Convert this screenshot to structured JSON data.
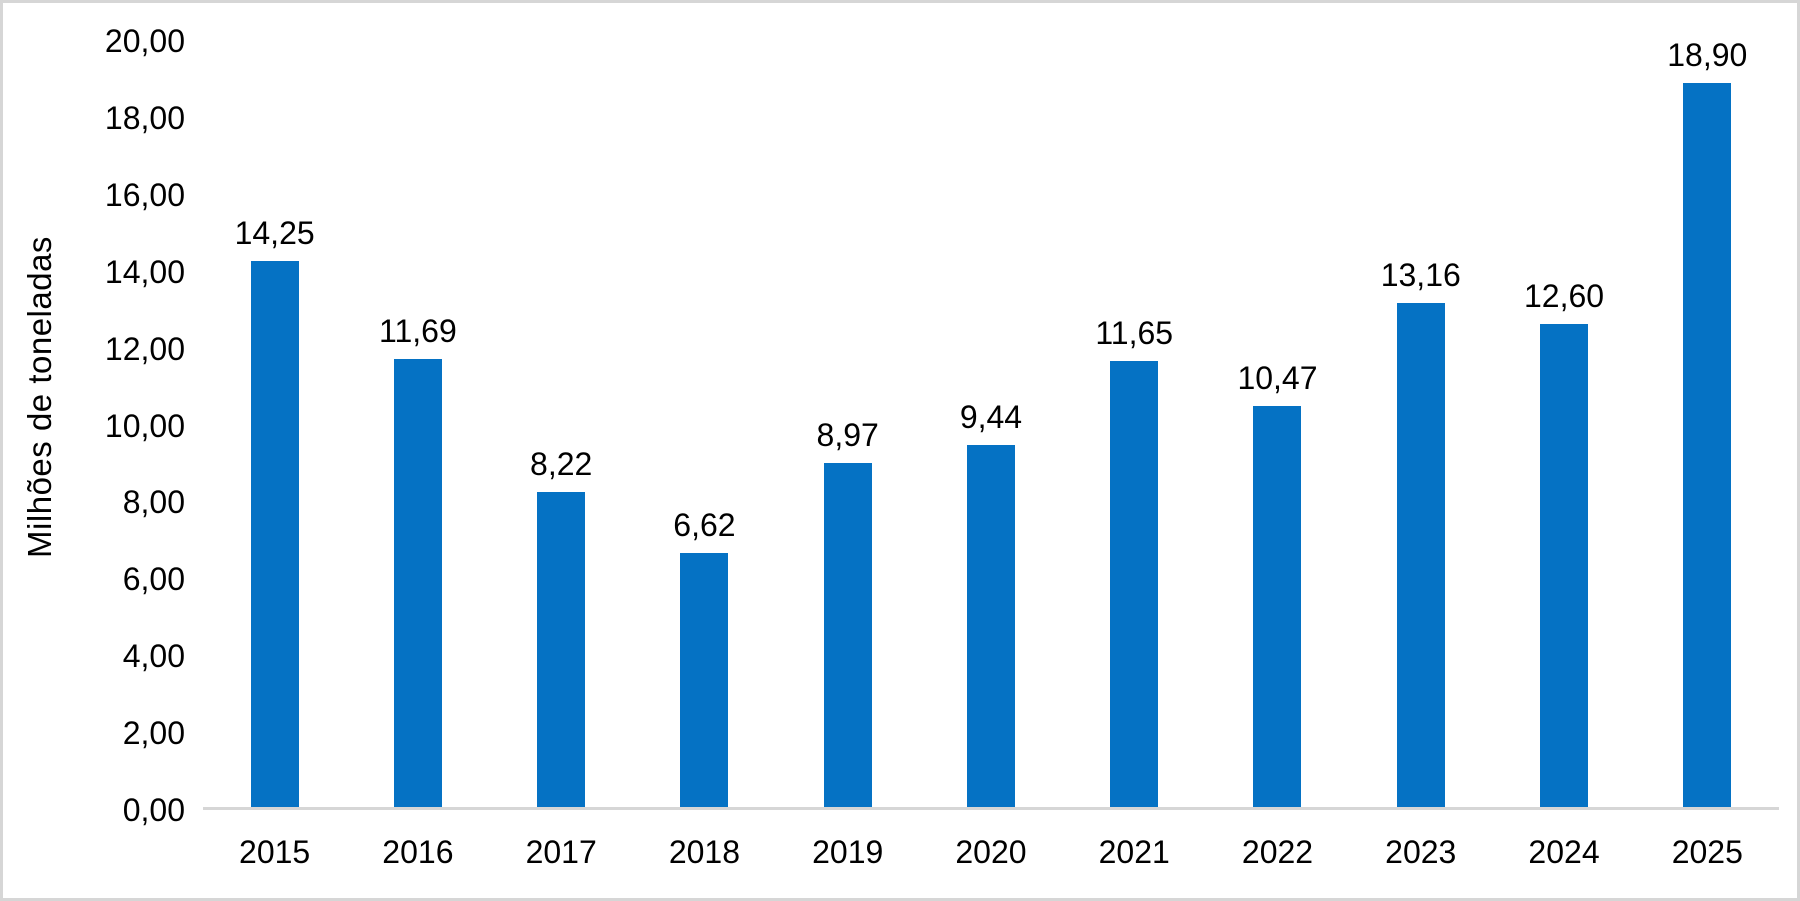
{
  "chart_data": {
    "type": "bar",
    "title": "",
    "xlabel": "",
    "ylabel": "Milhões de toneladas",
    "categories": [
      "2015",
      "2016",
      "2017",
      "2018",
      "2019",
      "2020",
      "2021",
      "2022",
      "2023",
      "2024",
      "2025"
    ],
    "values": [
      14.25,
      11.69,
      8.22,
      6.62,
      8.97,
      9.44,
      11.65,
      10.47,
      13.16,
      12.6,
      18.9
    ],
    "value_labels": [
      "14,25",
      "11,69",
      "8,22",
      "6,62",
      "8,97",
      "9,44",
      "11,65",
      "10,47",
      "13,16",
      "12,60",
      "18,90"
    ],
    "ylim": [
      0,
      20
    ],
    "ytick_step": 2,
    "yticks": [
      {
        "value": 0,
        "label": "0,00"
      },
      {
        "value": 2,
        "label": "2,00"
      },
      {
        "value": 4,
        "label": "4,00"
      },
      {
        "value": 6,
        "label": "6,00"
      },
      {
        "value": 8,
        "label": "8,00"
      },
      {
        "value": 10,
        "label": "10,00"
      },
      {
        "value": 12,
        "label": "12,00"
      },
      {
        "value": 14,
        "label": "14,00"
      },
      {
        "value": 16,
        "label": "16,00"
      },
      {
        "value": 18,
        "label": "18,00"
      },
      {
        "value": 20,
        "label": "20,00"
      }
    ],
    "grid": false,
    "legend": "none",
    "bar_color": "#0572C4",
    "axis_line_color": "#D6D6D6",
    "text_color": "#000000"
  }
}
